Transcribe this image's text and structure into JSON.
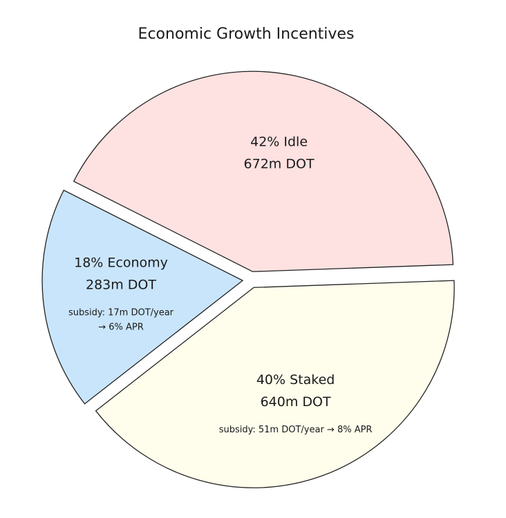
{
  "chart_data": {
    "type": "pie",
    "title": "Economic Growth Incentives",
    "slices": [
      {
        "key": "staked",
        "percent": 40,
        "amount": "640m DOT",
        "label": "40% Staked",
        "subsidy_lines": [
          "subsidy: 51m DOT/year → 8% APR"
        ],
        "color": "#fffdeb"
      },
      {
        "key": "economy",
        "percent": 18,
        "amount": "283m DOT",
        "label": "18% Economy",
        "subsidy_lines": [
          "subsidy: 17m DOT/year",
          "→ 6% APR"
        ],
        "color": "#c9e5fb"
      },
      {
        "key": "idle",
        "percent": 42,
        "amount": "672m DOT",
        "label": "42% Idle",
        "subsidy_lines": [],
        "color": "#fee1e1"
      }
    ],
    "exploded": true,
    "legend": "none"
  }
}
